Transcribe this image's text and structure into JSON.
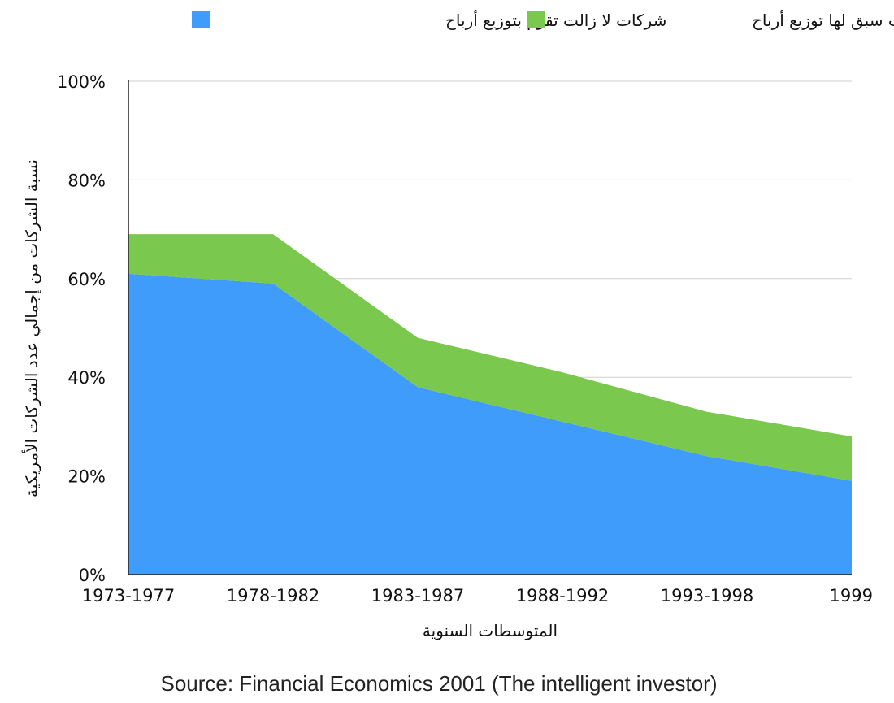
{
  "chart_data": {
    "type": "area",
    "stacked": true,
    "categories": [
      "1973-1977",
      "1978-1982",
      "1983-1987",
      "1988-1992",
      "1993-1998",
      "1999"
    ],
    "series": [
      {
        "name": "شركات لا زالت تقوم بتوزيع أرباح",
        "values": [
          61,
          59,
          38,
          31,
          24,
          19
        ],
        "color": "#409CFA"
      },
      {
        "name": "شركات سبق لها توزيع أرباح",
        "values": [
          8,
          10,
          10,
          10,
          9,
          9
        ],
        "color": "#7BC84E"
      }
    ],
    "ylim": [
      0,
      100
    ],
    "yticks": [
      0,
      20,
      40,
      60,
      80,
      100
    ],
    "ytick_labels": [
      "0%",
      "20%",
      "40%",
      "60%",
      "80%",
      "100%"
    ],
    "xlabel": "المتوسطات السنوية",
    "ylabel": "نسبة الشركات من إجمالي عدد الشركات الأمريكية",
    "grid": true,
    "legend_position": "top"
  },
  "source": "Source: Financial Economics 2001 (The intelligent investor)",
  "colors": {
    "grid": "#cfcfcf",
    "axis": "#222222"
  }
}
